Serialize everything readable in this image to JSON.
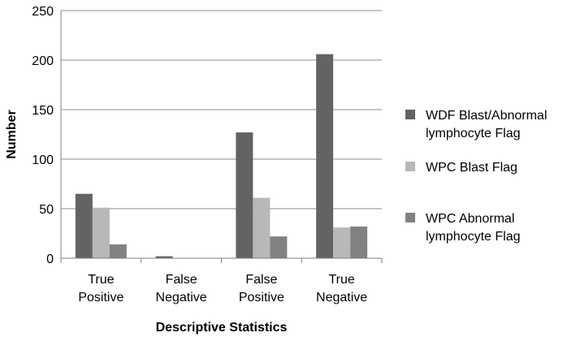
{
  "chart_data": {
    "type": "bar",
    "title": "",
    "xlabel": "Descriptive Statistics",
    "ylabel": "Number",
    "ylim": [
      0,
      250
    ],
    "yticks": [
      0,
      50,
      100,
      150,
      200,
      250
    ],
    "grid": true,
    "legend_position": "right",
    "categories": [
      [
        "True",
        "Positive"
      ],
      [
        "False",
        "Negative"
      ],
      [
        "False",
        "Positive"
      ],
      [
        "True",
        "Negative"
      ]
    ],
    "series": [
      {
        "name": [
          "WDF Blast/Abnormal",
          "lymphocyte Flag"
        ],
        "color": "#636363",
        "values": [
          65,
          2,
          127,
          206
        ]
      },
      {
        "name": [
          "WPC Blast Flag"
        ],
        "color": "#b8b8b8",
        "values": [
          51,
          0,
          61,
          31
        ]
      },
      {
        "name": [
          "WPC Abnormal",
          "lymphocyte Flag"
        ],
        "color": "#828282",
        "values": [
          14,
          0,
          22,
          32
        ]
      }
    ]
  }
}
